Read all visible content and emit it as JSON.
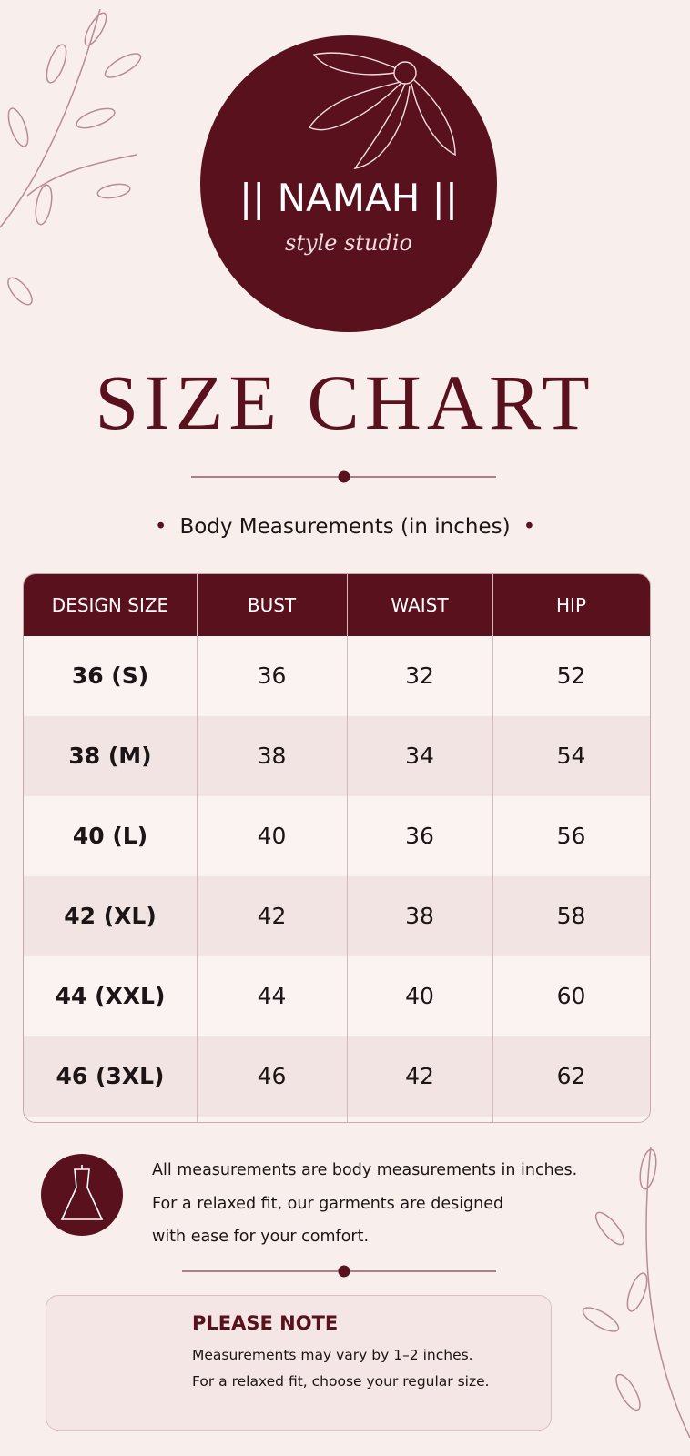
{
  "logo": {
    "brand": "|| NAMAH ||",
    "tagline": "style studio"
  },
  "title": "SIZE CHART",
  "subtitle": "Body Measurements (in inches)",
  "table": {
    "headers": [
      "DESIGN SIZE",
      "BUST",
      "WAIST",
      "HIP"
    ],
    "rows": [
      [
        "36 (S)",
        36,
        32,
        52
      ],
      [
        "38 (M)",
        38,
        34,
        54
      ],
      [
        "40 (L)",
        40,
        36,
        56
      ],
      [
        "42 (XL)",
        42,
        38,
        58
      ],
      [
        "44 (XXL)",
        44,
        40,
        60
      ],
      [
        "46 (3XL)",
        46,
        42,
        62
      ]
    ]
  },
  "info": [
    "All measurements are body measurements in inches.",
    "For a relaxed fit, our garments are designed",
    "with ease for your comfort."
  ],
  "note": {
    "title": "PLEASE NOTE",
    "lines": [
      "Measurements may vary by 1–2 inches.",
      "For a relaxed fit, choose your regular size."
    ]
  }
}
